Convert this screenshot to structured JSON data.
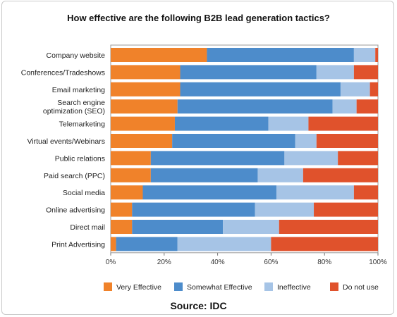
{
  "chart_data": {
    "type": "bar",
    "orientation": "horizontal",
    "stacked": true,
    "title": "How effective are the following B2B lead generation tactics?",
    "source": "Source: IDC",
    "categories": [
      "Company website",
      "Conferences/Tradeshows",
      "Email marketing",
      [
        "Search engine",
        "optimization (SEO)"
      ],
      "Telemarketing",
      "Virtual events/Webinars",
      "Public relations",
      "Paid search (PPC)",
      "Social media",
      "Online advertising",
      "Direct mail",
      "Print Advertising"
    ],
    "series": [
      {
        "name": "Very Effective",
        "color": "#f0822a",
        "values": [
          36,
          26,
          26,
          25,
          24,
          23,
          15,
          15,
          12,
          8,
          8,
          2
        ]
      },
      {
        "name": "Somewhat Effective",
        "color": "#4d8ccb",
        "values": [
          55,
          51,
          60,
          58,
          35,
          46,
          50,
          40,
          50,
          46,
          34,
          23
        ]
      },
      {
        "name": "Ineffective",
        "color": "#a6c4e6",
        "values": [
          8,
          14,
          11,
          9,
          15,
          8,
          20,
          17,
          29,
          22,
          21,
          35
        ]
      },
      {
        "name": "Do not use",
        "color": "#e0522c",
        "values": [
          1,
          9,
          3,
          8,
          26,
          23,
          15,
          28,
          9,
          24,
          37,
          40
        ]
      }
    ],
    "xlim": [
      0,
      100
    ],
    "xticks": [
      "0%",
      "20%",
      "40%",
      "60%",
      "80%",
      "100%"
    ],
    "legend_position": "bottom"
  }
}
